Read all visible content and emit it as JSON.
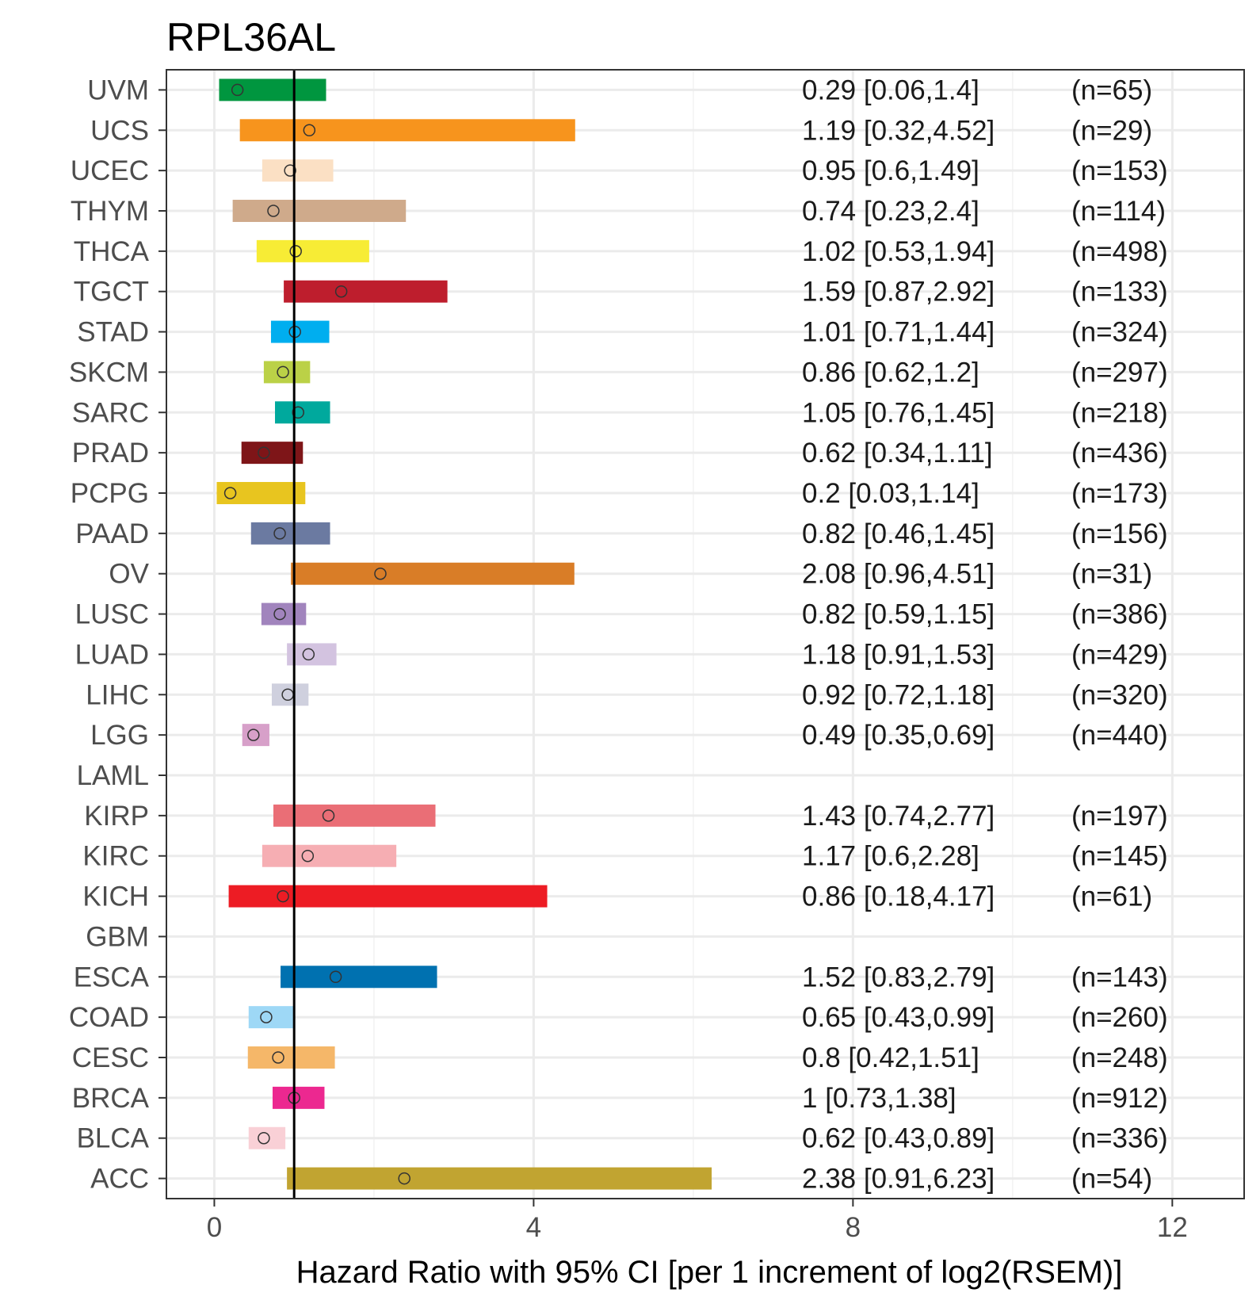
{
  "chart_data": {
    "type": "forest",
    "title": "RPL36AL",
    "xlabel": "Hazard Ratio with 95% CI [per 1 increment of log2(RSEM)]",
    "ylabel": "",
    "xlim": [
      -0.6,
      12.9
    ],
    "xticks": [
      0,
      4,
      8,
      12
    ],
    "reference_line": 1,
    "grid": true,
    "rows": [
      {
        "cancer": "UVM",
        "hr": 0.29,
        "low": 0.06,
        "high": 1.4,
        "label": "0.29 [0.06,1.4]",
        "n": "(n=65)",
        "color": "#00963f"
      },
      {
        "cancer": "UCS",
        "hr": 1.19,
        "low": 0.32,
        "high": 4.52,
        "label": "1.19 [0.32,4.52]",
        "n": "(n=29)",
        "color": "#f7941d"
      },
      {
        "cancer": "UCEC",
        "hr": 0.95,
        "low": 0.6,
        "high": 1.49,
        "label": "0.95 [0.6,1.49]",
        "n": "(n=153)",
        "color": "#fbe0c4"
      },
      {
        "cancer": "THYM",
        "hr": 0.74,
        "low": 0.23,
        "high": 2.4,
        "label": "0.74 [0.23,2.4]",
        "n": "(n=114)",
        "color": "#cfaa8b"
      },
      {
        "cancer": "THCA",
        "hr": 1.02,
        "low": 0.53,
        "high": 1.94,
        "label": "1.02 [0.53,1.94]",
        "n": "(n=498)",
        "color": "#f7ec35"
      },
      {
        "cancer": "TGCT",
        "hr": 1.59,
        "low": 0.87,
        "high": 2.92,
        "label": "1.59 [0.87,2.92]",
        "n": "(n=133)",
        "color": "#be1e2d"
      },
      {
        "cancer": "STAD",
        "hr": 1.01,
        "low": 0.71,
        "high": 1.44,
        "label": "1.01 [0.71,1.44]",
        "n": "(n=324)",
        "color": "#00aeef"
      },
      {
        "cancer": "SKCM",
        "hr": 0.86,
        "low": 0.62,
        "high": 1.2,
        "label": "0.86 [0.62,1.2]",
        "n": "(n=297)",
        "color": "#bbd147"
      },
      {
        "cancer": "SARC",
        "hr": 1.05,
        "low": 0.76,
        "high": 1.45,
        "label": "1.05 [0.76,1.45]",
        "n": "(n=218)",
        "color": "#00a99d"
      },
      {
        "cancer": "PRAD",
        "hr": 0.62,
        "low": 0.34,
        "high": 1.11,
        "label": "0.62 [0.34,1.11]",
        "n": "(n=436)",
        "color": "#7e1518"
      },
      {
        "cancer": "PCPG",
        "hr": 0.2,
        "low": 0.03,
        "high": 1.14,
        "label": "0.2 [0.03,1.14]",
        "n": "(n=173)",
        "color": "#e8c51f"
      },
      {
        "cancer": "PAAD",
        "hr": 0.82,
        "low": 0.46,
        "high": 1.45,
        "label": "0.82 [0.46,1.45]",
        "n": "(n=156)",
        "color": "#6b7aa1"
      },
      {
        "cancer": "OV",
        "hr": 2.08,
        "low": 0.96,
        "high": 4.51,
        "label": "2.08 [0.96,4.51]",
        "n": "(n=31)",
        "color": "#d97d27"
      },
      {
        "cancer": "LUSC",
        "hr": 0.82,
        "low": 0.59,
        "high": 1.15,
        "label": "0.82 [0.59,1.15]",
        "n": "(n=386)",
        "color": "#a184bd"
      },
      {
        "cancer": "LUAD",
        "hr": 1.18,
        "low": 0.91,
        "high": 1.53,
        "label": "1.18 [0.91,1.53]",
        "n": "(n=429)",
        "color": "#d3c3e0"
      },
      {
        "cancer": "LIHC",
        "hr": 0.92,
        "low": 0.72,
        "high": 1.18,
        "label": "0.92 [0.72,1.18]",
        "n": "(n=320)",
        "color": "#cfd0de"
      },
      {
        "cancer": "LGG",
        "hr": 0.49,
        "low": 0.35,
        "high": 0.69,
        "label": "0.49 [0.35,0.69]",
        "n": "(n=440)",
        "color": "#d7a0c9"
      },
      {
        "cancer": "LAML",
        "hr": null,
        "low": null,
        "high": null,
        "label": "",
        "n": "",
        "color": "#ffffff"
      },
      {
        "cancer": "KIRP",
        "hr": 1.43,
        "low": 0.74,
        "high": 2.77,
        "label": "1.43 [0.74,2.77]",
        "n": "(n=197)",
        "color": "#ea6e76"
      },
      {
        "cancer": "KIRC",
        "hr": 1.17,
        "low": 0.6,
        "high": 2.28,
        "label": "1.17 [0.6,2.28]",
        "n": "(n=145)",
        "color": "#f6aeb3"
      },
      {
        "cancer": "KICH",
        "hr": 0.86,
        "low": 0.18,
        "high": 4.17,
        "label": "0.86 [0.18,4.17]",
        "n": "(n=61)",
        "color": "#ed1c24"
      },
      {
        "cancer": "GBM",
        "hr": null,
        "low": null,
        "high": null,
        "label": "",
        "n": "",
        "color": "#ffffff"
      },
      {
        "cancer": "ESCA",
        "hr": 1.52,
        "low": 0.83,
        "high": 2.79,
        "label": "1.52 [0.83,2.79]",
        "n": "(n=143)",
        "color": "#0071b0"
      },
      {
        "cancer": "COAD",
        "hr": 0.65,
        "low": 0.43,
        "high": 0.99,
        "label": "0.65 [0.43,0.99]",
        "n": "(n=260)",
        "color": "#9ed8f6"
      },
      {
        "cancer": "CESC",
        "hr": 0.8,
        "low": 0.42,
        "high": 1.51,
        "label": "0.8 [0.42,1.51]",
        "n": "(n=248)",
        "color": "#f5b769"
      },
      {
        "cancer": "BRCA",
        "hr": 1,
        "low": 0.73,
        "high": 1.38,
        "label": "1 [0.73,1.38]",
        "n": "(n=912)",
        "color": "#ec2890"
      },
      {
        "cancer": "BLCA",
        "hr": 0.62,
        "low": 0.43,
        "high": 0.89,
        "label": "0.62 [0.43,0.89]",
        "n": "(n=336)",
        "color": "#f9d0d6"
      },
      {
        "cancer": "ACC",
        "hr": 2.38,
        "low": 0.91,
        "high": 6.23,
        "label": "2.38 [0.91,6.23]",
        "n": "(n=54)",
        "color": "#c1a431"
      }
    ]
  }
}
